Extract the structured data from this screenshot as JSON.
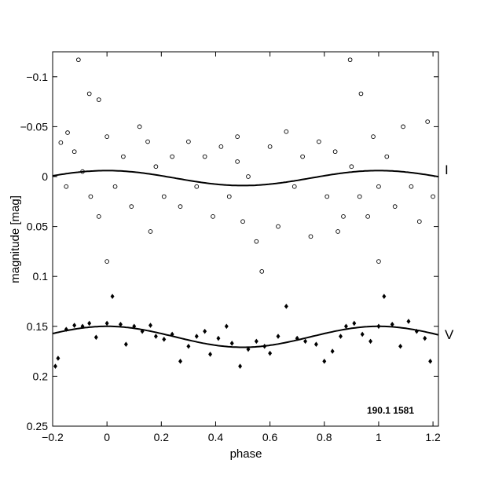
{
  "chart_data": {
    "type": "scatter",
    "xlabel": "phase",
    "ylabel": "magnitude  [mag]",
    "xlim": [
      -0.2,
      1.22
    ],
    "ylim": [
      0.25,
      -0.125
    ],
    "y_axis_inverted": true,
    "grid": false,
    "x_ticks": [
      -0.2,
      0,
      0.2,
      0.4,
      0.6,
      0.8,
      1,
      1.2
    ],
    "x_tick_labels": [
      "−0.2",
      "0",
      "0.2",
      "0.4",
      "0.6",
      "0.8",
      "1",
      "1.2"
    ],
    "y_ticks": [
      -0.1,
      -0.05,
      0,
      0.05,
      0.1,
      0.15,
      0.2,
      0.25
    ],
    "y_tick_labels": [
      "−0.1",
      "−0.05",
      "0",
      "0.05",
      "0.1",
      "0.15",
      "0.2",
      "0.25"
    ],
    "annotation": "190.1 1581",
    "series": [
      {
        "name": "I",
        "marker": "open-circle",
        "fit": {
          "mean": 0.0015,
          "amplitude": 0.0075,
          "peak_phase": 0.0
        },
        "points": [
          [
            -0.105,
            -0.117
          ],
          [
            0.895,
            -0.117
          ],
          [
            -0.03,
            -0.077
          ],
          [
            -0.065,
            -0.083
          ],
          [
            0.935,
            -0.083
          ],
          [
            -0.145,
            -0.044
          ],
          [
            -0.17,
            -0.034
          ],
          [
            -0.12,
            -0.025
          ],
          [
            -0.09,
            -0.005
          ],
          [
            -0.06,
            0.02
          ],
          [
            -0.03,
            0.04
          ],
          [
            0.0,
            -0.04
          ],
          [
            0.03,
            0.01
          ],
          [
            0.06,
            -0.02
          ],
          [
            0.09,
            0.03
          ],
          [
            0.12,
            -0.05
          ],
          [
            0.15,
            -0.035
          ],
          [
            0.16,
            0.055
          ],
          [
            0.18,
            -0.01
          ],
          [
            0.21,
            0.02
          ],
          [
            0.24,
            -0.02
          ],
          [
            0.27,
            0.03
          ],
          [
            0.3,
            -0.035
          ],
          [
            0.33,
            0.01
          ],
          [
            0.36,
            -0.02
          ],
          [
            0.39,
            0.04
          ],
          [
            0.42,
            -0.03
          ],
          [
            0.45,
            0.02
          ],
          [
            0.48,
            -0.04
          ],
          [
            0.5,
            0.045
          ],
          [
            0.52,
            0.0
          ],
          [
            0.55,
            0.065
          ],
          [
            0.57,
            0.095
          ],
          [
            0.6,
            -0.03
          ],
          [
            0.63,
            0.05
          ],
          [
            0.66,
            -0.045
          ],
          [
            0.69,
            0.01
          ],
          [
            0.72,
            -0.02
          ],
          [
            0.75,
            0.06
          ],
          [
            0.78,
            -0.035
          ],
          [
            0.81,
            0.02
          ],
          [
            0.84,
            -0.025
          ],
          [
            0.87,
            0.04
          ],
          [
            0.9,
            -0.01
          ],
          [
            0.93,
            0.02
          ],
          [
            0.96,
            0.04
          ],
          [
            0.98,
            -0.04
          ],
          [
            1.0,
            0.01
          ],
          [
            1.03,
            -0.02
          ],
          [
            1.06,
            0.03
          ],
          [
            1.09,
            -0.05
          ],
          [
            1.12,
            0.01
          ],
          [
            1.15,
            0.045
          ],
          [
            1.18,
            -0.055
          ],
          [
            1.2,
            0.02
          ],
          [
            0.0,
            0.085
          ],
          [
            1.0,
            0.085
          ],
          [
            -0.15,
            0.01
          ],
          [
            0.85,
            0.055
          ],
          [
            0.48,
            -0.015
          ]
        ]
      },
      {
        "name": "V",
        "marker": "filled-diamond",
        "fit": {
          "mean": 0.1605,
          "amplitude": 0.0105,
          "peak_phase": 0.0
        },
        "points": [
          [
            -0.19,
            0.19
          ],
          [
            -0.18,
            0.182
          ],
          [
            -0.15,
            0.153
          ],
          [
            -0.12,
            0.149
          ],
          [
            -0.09,
            0.15
          ],
          [
            -0.065,
            0.147
          ],
          [
            -0.04,
            0.161
          ],
          [
            0.0,
            0.147
          ],
          [
            0.02,
            0.12
          ],
          [
            0.05,
            0.148
          ],
          [
            0.07,
            0.168
          ],
          [
            0.1,
            0.15
          ],
          [
            0.13,
            0.155
          ],
          [
            0.16,
            0.149
          ],
          [
            0.18,
            0.16
          ],
          [
            0.21,
            0.163
          ],
          [
            0.24,
            0.158
          ],
          [
            0.27,
            0.185
          ],
          [
            0.3,
            0.17
          ],
          [
            0.33,
            0.16
          ],
          [
            0.36,
            0.155
          ],
          [
            0.38,
            0.178
          ],
          [
            0.41,
            0.162
          ],
          [
            0.44,
            0.15
          ],
          [
            0.46,
            0.167
          ],
          [
            0.49,
            0.19
          ],
          [
            0.52,
            0.173
          ],
          [
            0.55,
            0.165
          ],
          [
            0.58,
            0.17
          ],
          [
            0.6,
            0.177
          ],
          [
            0.63,
            0.16
          ],
          [
            0.66,
            0.13
          ],
          [
            0.7,
            0.162
          ],
          [
            0.73,
            0.165
          ],
          [
            0.77,
            0.168
          ],
          [
            0.8,
            0.185
          ],
          [
            0.83,
            0.175
          ],
          [
            0.86,
            0.16
          ],
          [
            0.88,
            0.15
          ],
          [
            0.91,
            0.147
          ],
          [
            0.94,
            0.158
          ],
          [
            0.97,
            0.165
          ],
          [
            1.0,
            0.15
          ],
          [
            1.02,
            0.12
          ],
          [
            1.05,
            0.148
          ],
          [
            1.08,
            0.17
          ],
          [
            1.11,
            0.145
          ],
          [
            1.14,
            0.155
          ],
          [
            1.17,
            0.162
          ],
          [
            1.19,
            0.185
          ]
        ]
      }
    ]
  }
}
